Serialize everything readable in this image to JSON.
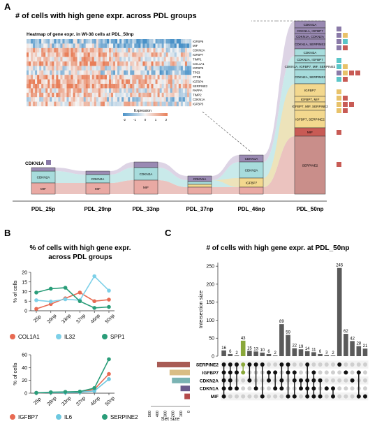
{
  "colors": {
    "mif": "#b54a4a",
    "cdkn2a": "#5bc6c9",
    "cdkn1a": "#6b5a8c",
    "igfbp7": "#e8c26a",
    "serpine2": "#a85b55",
    "col1a1": "#e86a52",
    "il32": "#7dd0e8",
    "spp1": "#2a9d79",
    "il6": "#6dc8e0",
    "heat_low": "#4a92c8",
    "heat_high": "#e87e58"
  },
  "panel_a": {
    "letter": "A",
    "title": "# of cells with high gene expr. across PDL groups",
    "heatmap_title": "Heatmap of gene expr. in WI-38 cells at PDL_50np",
    "heatmap_genes": [
      "IGFBP6",
      "MIF",
      "CDKN2A",
      "IGFBP7",
      "TIMP1",
      "COL1A1",
      "IGFBP5",
      "TP53",
      "CTSB",
      "IGFBP4",
      "SERPINE2",
      "PAPPA",
      "TIMP2",
      "CDKN1A",
      "IGFBP3"
    ],
    "legend_title": "Expression",
    "legend_ticks": [
      "-2",
      "-1",
      "0",
      "1",
      "2"
    ],
    "groups": [
      "PDL_25p",
      "PDL_29np",
      "PDL_33np",
      "PDL_37np",
      "PDL_46np",
      "PDL_50np"
    ],
    "side_label": "CDKN1A",
    "col_labels": {
      "c25": [
        "CDKN2A",
        "MIF"
      ],
      "c29": [
        "CDKN2A",
        "MIF"
      ],
      "c33": [
        "CDKN2A",
        "MIF"
      ],
      "c37": [
        "CDKN1A"
      ],
      "c46": [
        "CDKN1A",
        "CDKN2A",
        "IGFBP7"
      ],
      "c50": [
        "CDKN1A",
        "CDKN1A, IGFBP7",
        "CDKN1A, CDKN2A",
        "CDKN1A, SERPINE2",
        "CDKN2A",
        "CDKN2A, IGFBP7",
        "CDKN1A, IGFBP7, MIF, SERPINE2",
        "CDKN2A, SERPINE2",
        "IGFBP7",
        "IGFBP7, MIF",
        "IGFBP7, MIF, SERPINE2",
        "IGFBP7, SERPINE2",
        "MIF",
        "SERPINE2"
      ]
    }
  },
  "panel_b": {
    "letter": "B",
    "title_line1": "% of cells with high gene expr.",
    "title_line2": "across PDL groups",
    "ylabel": "% of cells",
    "x_labels": [
      "25p",
      "29np",
      "33np",
      "37np",
      "46np",
      "50np"
    ],
    "top": {
      "yticks": [
        "0",
        "5",
        "10",
        "15",
        "20"
      ],
      "legend": [
        "COL1A1",
        "IL32",
        "SPP1"
      ]
    },
    "bottom": {
      "yticks": [
        "0",
        "20",
        "40",
        "60"
      ],
      "legend": [
        "IGFBP7",
        "IL6",
        "SERPINE2"
      ]
    }
  },
  "panel_c": {
    "letter": "C",
    "title": "# of cells with high gene expr. at PDL_50np",
    "ylabel": "Intersection size",
    "yticks": [
      "0",
      "50",
      "100",
      "150",
      "200",
      "250"
    ],
    "sets": [
      "SERPINE2",
      "IGFBP7",
      "CDKN2A",
      "CDKN1A",
      "MIF"
    ],
    "set_size_label": "Set size",
    "set_ticks": [
      "500",
      "400",
      "300",
      "200",
      "100",
      "0"
    ]
  },
  "chart_data": [
    {
      "type": "line",
      "title": "% of cells with high gene expr. across PDL groups",
      "ylabel": "% of cells",
      "x": [
        "25p",
        "29np",
        "33np",
        "37np",
        "46np",
        "50np"
      ],
      "ylim": [
        0,
        20
      ],
      "series": [
        {
          "name": "COL1A1",
          "values": [
            1.0,
            3.5,
            6.5,
            9.5,
            5.0,
            5.8
          ]
        },
        {
          "name": "IL32",
          "values": [
            5.5,
            4.8,
            6.0,
            5.5,
            18.0,
            10.5
          ]
        },
        {
          "name": "SPP1",
          "values": [
            9.5,
            11.5,
            12.0,
            5.0,
            1.5,
            2.0
          ]
        }
      ]
    },
    {
      "type": "line",
      "ylabel": "% of cells",
      "x": [
        "25p",
        "29np",
        "33np",
        "37np",
        "46np",
        "50np"
      ],
      "ylim": [
        0,
        60
      ],
      "series": [
        {
          "name": "IGFBP7",
          "values": [
            0.5,
            1.0,
            1.5,
            1.5,
            6.0,
            30.0
          ]
        },
        {
          "name": "IL6",
          "values": [
            0.5,
            1.0,
            1.0,
            1.5,
            3.5,
            22.0
          ]
        },
        {
          "name": "SERPINE2",
          "values": [
            0.5,
            1.5,
            2.0,
            2.5,
            8.0,
            53.0
          ]
        }
      ]
    },
    {
      "type": "bar",
      "title": "# of cells with high gene expr. at PDL_50np",
      "ylabel": "Intersection size",
      "ylim": [
        0,
        260
      ],
      "values": [
        16,
        6,
        2,
        43,
        15,
        13,
        10,
        6,
        2,
        89,
        59,
        22,
        19,
        14,
        11,
        6,
        3,
        2,
        245,
        62,
        42,
        28,
        21
      ],
      "highlight_index": 3,
      "sets": [
        "SERPINE2",
        "IGFBP7",
        "CDKN2A",
        "CDKN1A",
        "MIF"
      ],
      "set_sizes": [
        420,
        260,
        230,
        120,
        70
      ],
      "membership": [
        [
          0,
          1,
          2,
          3,
          4
        ],
        [
          0,
          1,
          2,
          3
        ],
        [
          0,
          1,
          3
        ],
        [
          0,
          1
        ],
        [
          0,
          2
        ],
        [
          0,
          3
        ],
        [
          0,
          4
        ],
        [
          1,
          2
        ],
        [
          1,
          3
        ],
        [
          0,
          2,
          3
        ],
        [
          0,
          1,
          4
        ],
        [
          1,
          2,
          4
        ],
        [
          2,
          3
        ],
        [
          0,
          2,
          3,
          4
        ],
        [
          1,
          2,
          3,
          4
        ],
        [
          2,
          4
        ],
        [
          3
        ],
        [
          3,
          4
        ],
        [
          0
        ],
        [
          1
        ],
        [
          2
        ],
        [
          1,
          4
        ],
        [
          4
        ]
      ]
    }
  ]
}
